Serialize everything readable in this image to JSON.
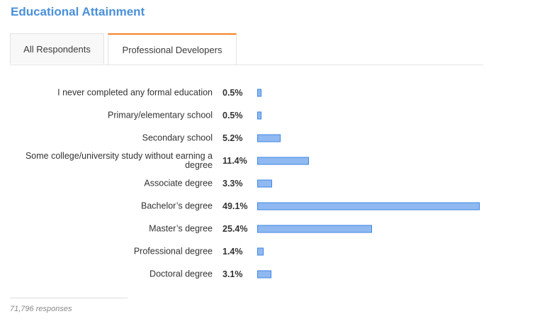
{
  "title": "Educational Attainment",
  "tabs": [
    {
      "label": "All Respondents",
      "active": false
    },
    {
      "label": "Professional Developers",
      "active": true
    }
  ],
  "accent_color": "#f48024",
  "bar_color": "#8fb9f0",
  "bar_border_color": "#3f86e6",
  "chart_data": {
    "type": "bar",
    "orientation": "horizontal",
    "categories": [
      "I never completed any formal education",
      "Primary/elementary school",
      "Secondary school",
      "Some college/university study without earning a degree",
      "Associate degree",
      "Bachelor’s degree",
      "Master’s degree",
      "Professional degree",
      "Doctoral degree"
    ],
    "values": [
      0.5,
      0.5,
      5.2,
      11.4,
      3.3,
      49.1,
      25.4,
      1.4,
      3.1
    ],
    "value_labels": [
      "0.5%",
      "0.5%",
      "5.2%",
      "11.4%",
      "3.3%",
      "49.1%",
      "25.4%",
      "1.4%",
      "3.1%"
    ],
    "unit": "%",
    "title": "Educational Attainment"
  },
  "footer": {
    "responses": "71,796 responses"
  }
}
